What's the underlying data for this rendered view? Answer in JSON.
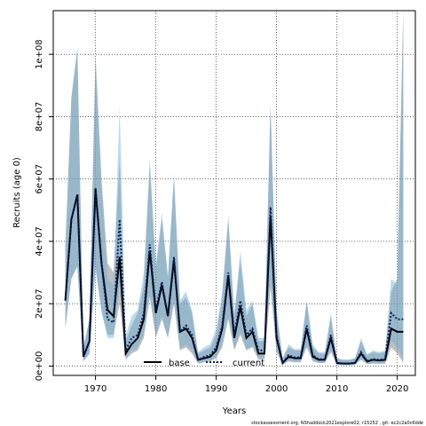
{
  "chart_data": {
    "type": "line",
    "xlabel": "Years",
    "ylabel": "Recruits (age 0)",
    "xlim": [
      1963,
      2023
    ],
    "ylim": [
      -3000000,
      114000000
    ],
    "x_ticks": [
      1970,
      1980,
      1990,
      2000,
      2010,
      2020
    ],
    "x_tick_labels": [
      "1970",
      "1980",
      "1990",
      "2000",
      "2010",
      "2020"
    ],
    "y_ticks": [
      0,
      20000000,
      40000000,
      60000000,
      80000000,
      100000000
    ],
    "y_tick_labels": [
      "0e+00",
      "2e+07",
      "4e+07",
      "6e+07",
      "8e+07",
      "1e+08"
    ],
    "grid": true,
    "legend_position": "bottom-center",
    "footnote": "stockassessment.org, NShaddock2021explore02, r15252 , git: ec2c2a0c6dde",
    "series": [
      {
        "name": "base",
        "color": "#000000",
        "band_color": "#808080",
        "line_style": "solid",
        "x": [
          1965,
          1966,
          1967,
          1968,
          1969,
          1970,
          1971,
          1972,
          1973,
          1974,
          1975,
          1976,
          1977,
          1978,
          1979,
          1980,
          1981,
          1982,
          1983,
          1984,
          1985,
          1986,
          1987,
          1988,
          1989,
          1990,
          1991,
          1992,
          1993,
          1994,
          1995,
          1996,
          1997,
          1998,
          1999,
          2000,
          2001,
          2002,
          2003,
          2004,
          2005,
          2006,
          2007,
          2008,
          2009,
          2010,
          2011,
          2012,
          2013,
          2014,
          2015,
          2016,
          2017,
          2018,
          2019,
          2020,
          2021
        ],
        "y": [
          21000000,
          47000000,
          55000000,
          3000000,
          8000000,
          57000000,
          33000000,
          18000000,
          16000000,
          35000000,
          4000000,
          7000000,
          9000000,
          15000000,
          37000000,
          17000000,
          26000000,
          16000000,
          34000000,
          11000000,
          12000000,
          9000000,
          2000000,
          2500000,
          3000000,
          5000000,
          12000000,
          29000000,
          9000000,
          19000000,
          9000000,
          11000000,
          4000000,
          4000000,
          48000000,
          9000000,
          1000000,
          3000000,
          2500000,
          2500000,
          12000000,
          3000000,
          2000000,
          2000000,
          9000000,
          1000000,
          800000,
          800000,
          1000000,
          4000000,
          1500000,
          2000000,
          1800000,
          2000000,
          12000000,
          11000000,
          11000000
        ],
        "lower": [
          12000000,
          28000000,
          32000000,
          1500000,
          4000000,
          32000000,
          18000000,
          10000000,
          10000000,
          20000000,
          2000000,
          4000000,
          5000000,
          9000000,
          22000000,
          9000000,
          15000000,
          9000000,
          20000000,
          5000000,
          6000000,
          4000000,
          800000,
          1200000,
          1500000,
          2500000,
          6000000,
          15000000,
          5000000,
          10000000,
          5000000,
          6000000,
          2000000,
          2000000,
          25000000,
          4500000,
          400000,
          1500000,
          1200000,
          1200000,
          6000000,
          1500000,
          1000000,
          1000000,
          4500000,
          400000,
          300000,
          300000,
          400000,
          2000000,
          600000,
          800000,
          700000,
          800000,
          6000000,
          4000000,
          1000000
        ],
        "upper": [
          38000000,
          86000000,
          102000000,
          6000000,
          15000000,
          100000000,
          60000000,
          33000000,
          30000000,
          66000000,
          8000000,
          13000000,
          17000000,
          26000000,
          64000000,
          31000000,
          47000000,
          28000000,
          60000000,
          20000000,
          22000000,
          17000000,
          4000000,
          5000000,
          6000000,
          10000000,
          22000000,
          48000000,
          16000000,
          34000000,
          16000000,
          20000000,
          8000000,
          8000000,
          84000000,
          17000000,
          2500000,
          6000000,
          5000000,
          5000000,
          21000000,
          6000000,
          4000000,
          4000000,
          16000000,
          2500000,
          2000000,
          2000000,
          2500000,
          8000000,
          3500000,
          4500000,
          4000000,
          4500000,
          24000000,
          28000000,
          114000000
        ]
      },
      {
        "name": "current",
        "color": "#0a1e5a",
        "band_color": "#6aaed6",
        "line_style": "dotted",
        "x": [
          1965,
          1966,
          1967,
          1968,
          1969,
          1970,
          1971,
          1972,
          1973,
          1974,
          1975,
          1976,
          1977,
          1978,
          1979,
          1980,
          1981,
          1982,
          1983,
          1984,
          1985,
          1986,
          1987,
          1988,
          1989,
          1990,
          1991,
          1992,
          1993,
          1994,
          1995,
          1996,
          1997,
          1998,
          1999,
          2000,
          2001,
          2002,
          2003,
          2004,
          2005,
          2006,
          2007,
          2008,
          2009,
          2010,
          2011,
          2012,
          2013,
          2014,
          2015,
          2016,
          2017,
          2018,
          2019,
          2020,
          2021
        ],
        "y": [
          21000000,
          47000000,
          55000000,
          3000000,
          8000000,
          56000000,
          33000000,
          15000000,
          14000000,
          47000000,
          5000000,
          9000000,
          10000000,
          17000000,
          39000000,
          18000000,
          27000000,
          16000000,
          35000000,
          11000000,
          13000000,
          10000000,
          2000000,
          3000000,
          3500000,
          6000000,
          13000000,
          30000000,
          10000000,
          21000000,
          10000000,
          12000000,
          5000000,
          5000000,
          51000000,
          10000000,
          1000000,
          3500000,
          2800000,
          2800000,
          13000000,
          3500000,
          2200000,
          2200000,
          10000000,
          1000000,
          800000,
          800000,
          1000000,
          4500000,
          1700000,
          2200000,
          2000000,
          2300000,
          17000000,
          15000000,
          15000000
        ],
        "lower": [
          12000000,
          28000000,
          32000000,
          1500000,
          4000000,
          31000000,
          17000000,
          9000000,
          9000000,
          27000000,
          2500000,
          5000000,
          6000000,
          10000000,
          23000000,
          10000000,
          16000000,
          9000000,
          21000000,
          5500000,
          7000000,
          5000000,
          900000,
          1400000,
          1800000,
          3000000,
          7000000,
          16000000,
          5500000,
          11000000,
          5500000,
          6500000,
          2500000,
          2500000,
          28000000,
          5000000,
          400000,
          1800000,
          1400000,
          1400000,
          6500000,
          1800000,
          1100000,
          1100000,
          5000000,
          400000,
          300000,
          300000,
          400000,
          2200000,
          700000,
          900000,
          800000,
          900000,
          8000000,
          6000000,
          2000000
        ],
        "upper": [
          38000000,
          86000000,
          102000000,
          6000000,
          15000000,
          98000000,
          58000000,
          28000000,
          26000000,
          83000000,
          10000000,
          16000000,
          18000000,
          30000000,
          67000000,
          33000000,
          49000000,
          29000000,
          62000000,
          21000000,
          24000000,
          18000000,
          4500000,
          6000000,
          7000000,
          12000000,
          24000000,
          47000000,
          17000000,
          37000000,
          18000000,
          21000000,
          9000000,
          9000000,
          84000000,
          19000000,
          2500000,
          7000000,
          5500000,
          5500000,
          21000000,
          7000000,
          4500000,
          4500000,
          17000000,
          2500000,
          2000000,
          2000000,
          2500000,
          9000000,
          3800000,
          5000000,
          4500000,
          5000000,
          28000000,
          26000000,
          114000000
        ]
      }
    ]
  }
}
